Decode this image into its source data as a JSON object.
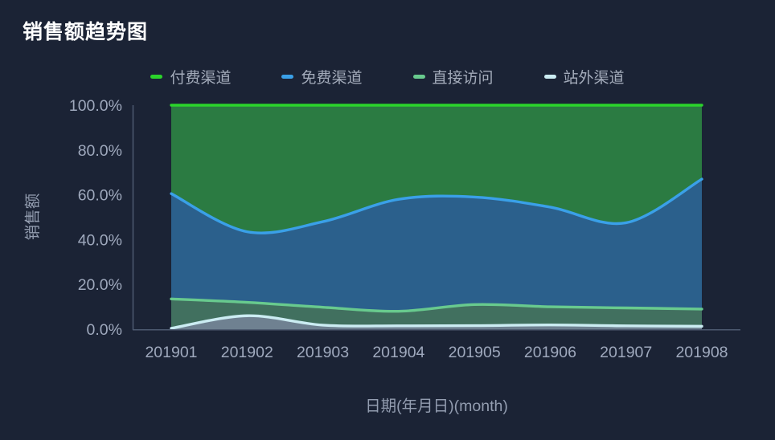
{
  "title": "销售额趋势图",
  "colors": {
    "background": "#1b2335",
    "title_text": "#ffffff",
    "legend_text": "#a3abba",
    "axis_line": "#4d5a70",
    "axis_text": "#9fa9bd",
    "axis_name_text": "#939db0"
  },
  "legend": [
    "付费渠道",
    "免费渠道",
    "直接访问",
    "站外渠道"
  ],
  "chart_data": {
    "type": "area",
    "stacked": true,
    "percentage": true,
    "grid": false,
    "legend_position": "top",
    "title": "销售额趋势图",
    "xlabel": "日期(年月日)(month)",
    "ylabel": "销售额",
    "ylim": [
      0,
      100
    ],
    "y_ticks": [
      "0.0%",
      "20.0%",
      "40.0%",
      "60.0%",
      "80.0%",
      "100.0%"
    ],
    "x": [
      "201901",
      "201902",
      "201903",
      "201904",
      "201905",
      "201906",
      "201907",
      "201908"
    ],
    "series": [
      {
        "name": "站外渠道",
        "line_color": "#cbecf2",
        "fill_color": "#6f8191",
        "values": [
          0.4,
          6.0,
          1.8,
          1.5,
          1.6,
          1.9,
          1.5,
          1.3
        ]
      },
      {
        "name": "直接访问",
        "line_color": "#68ca8e",
        "fill_color": "#41705f",
        "values": [
          13.1,
          6.0,
          8.0,
          6.5,
          9.4,
          8.1,
          8.0,
          7.7
        ]
      },
      {
        "name": "免费渠道",
        "line_color": "#3aa0e8",
        "fill_color": "#2b608c",
        "values": [
          47.0,
          31.5,
          38.2,
          50.0,
          48.0,
          44.5,
          38.0,
          58.0
        ]
      },
      {
        "name": "付费渠道",
        "line_color": "#2bd42b",
        "fill_color": "#2b7b42",
        "values": [
          39.5,
          56.5,
          52.0,
          42.0,
          41.0,
          45.5,
          52.5,
          33.0
        ]
      }
    ]
  }
}
